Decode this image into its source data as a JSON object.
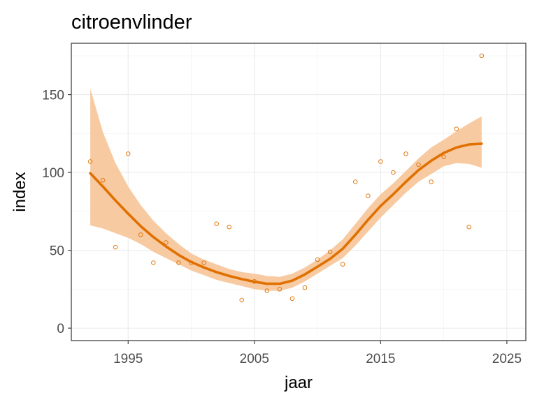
{
  "chart_data": {
    "type": "scatter",
    "title": "citroenvlinder",
    "xlabel": "jaar",
    "ylabel": "index",
    "xlim": [
      1990.5,
      2026.5
    ],
    "ylim": [
      -8,
      183
    ],
    "xticks": [
      1995,
      2005,
      2015,
      2025
    ],
    "yticks": [
      0,
      50,
      100,
      150
    ],
    "grid": true,
    "colors": {
      "points": "#e07000",
      "trend": "#e07000",
      "band": "#f6c498"
    },
    "points": [
      {
        "x": 1992,
        "y": 107
      },
      {
        "x": 1993,
        "y": 95
      },
      {
        "x": 1994,
        "y": 52
      },
      {
        "x": 1995,
        "y": 112
      },
      {
        "x": 1996,
        "y": 60
      },
      {
        "x": 1997,
        "y": 42
      },
      {
        "x": 1998,
        "y": 55
      },
      {
        "x": 1999,
        "y": 42
      },
      {
        "x": 2000,
        "y": 42
      },
      {
        "x": 2001,
        "y": 42
      },
      {
        "x": 2002,
        "y": 67
      },
      {
        "x": 2003,
        "y": 65
      },
      {
        "x": 2004,
        "y": 18
      },
      {
        "x": 2005,
        "y": 30
      },
      {
        "x": 2006,
        "y": 24
      },
      {
        "x": 2007,
        "y": 25
      },
      {
        "x": 2008,
        "y": 19
      },
      {
        "x": 2009,
        "y": 26
      },
      {
        "x": 2010,
        "y": 44
      },
      {
        "x": 2011,
        "y": 49
      },
      {
        "x": 2012,
        "y": 41
      },
      {
        "x": 2013,
        "y": 94
      },
      {
        "x": 2014,
        "y": 85
      },
      {
        "x": 2015,
        "y": 107
      },
      {
        "x": 2016,
        "y": 100
      },
      {
        "x": 2017,
        "y": 112
      },
      {
        "x": 2018,
        "y": 105
      },
      {
        "x": 2019,
        "y": 94
      },
      {
        "x": 2020,
        "y": 110
      },
      {
        "x": 2021,
        "y": 128
      },
      {
        "x": 2022,
        "y": 65
      },
      {
        "x": 2023,
        "y": 175
      }
    ],
    "trend": [
      {
        "x": 1992,
        "y": 99.5,
        "lo": 66,
        "hi": 154
      },
      {
        "x": 1993,
        "y": 91,
        "lo": 64,
        "hi": 126
      },
      {
        "x": 1994,
        "y": 82,
        "lo": 61,
        "hi": 106
      },
      {
        "x": 1995,
        "y": 73.5,
        "lo": 58,
        "hi": 91
      },
      {
        "x": 1996,
        "y": 65.5,
        "lo": 54,
        "hi": 79
      },
      {
        "x": 1997,
        "y": 58.5,
        "lo": 49,
        "hi": 69
      },
      {
        "x": 1998,
        "y": 52.5,
        "lo": 45,
        "hi": 61
      },
      {
        "x": 1999,
        "y": 47,
        "lo": 41,
        "hi": 54
      },
      {
        "x": 2000,
        "y": 42.5,
        "lo": 37,
        "hi": 48
      },
      {
        "x": 2001,
        "y": 39,
        "lo": 34,
        "hi": 44
      },
      {
        "x": 2002,
        "y": 36,
        "lo": 31,
        "hi": 41
      },
      {
        "x": 2003,
        "y": 33.5,
        "lo": 29,
        "hi": 38
      },
      {
        "x": 2004,
        "y": 31.5,
        "lo": 27,
        "hi": 36
      },
      {
        "x": 2005,
        "y": 29.8,
        "lo": 25,
        "hi": 35
      },
      {
        "x": 2006,
        "y": 28.5,
        "lo": 24,
        "hi": 33.5
      },
      {
        "x": 2007,
        "y": 28.5,
        "lo": 24,
        "hi": 33
      },
      {
        "x": 2008,
        "y": 30.5,
        "lo": 26,
        "hi": 35
      },
      {
        "x": 2009,
        "y": 34.5,
        "lo": 30,
        "hi": 39
      },
      {
        "x": 2010,
        "y": 39.5,
        "lo": 35,
        "hi": 44
      },
      {
        "x": 2011,
        "y": 44.5,
        "lo": 40,
        "hi": 50
      },
      {
        "x": 2012,
        "y": 51,
        "lo": 45,
        "hi": 57
      },
      {
        "x": 2013,
        "y": 60,
        "lo": 53,
        "hi": 67
      },
      {
        "x": 2014,
        "y": 69.5,
        "lo": 62,
        "hi": 77
      },
      {
        "x": 2015,
        "y": 78.5,
        "lo": 71,
        "hi": 86
      },
      {
        "x": 2016,
        "y": 86,
        "lo": 79,
        "hi": 93
      },
      {
        "x": 2017,
        "y": 94,
        "lo": 87,
        "hi": 101
      },
      {
        "x": 2018,
        "y": 101.5,
        "lo": 94,
        "hi": 109
      },
      {
        "x": 2019,
        "y": 107.5,
        "lo": 99,
        "hi": 116
      },
      {
        "x": 2020,
        "y": 112.5,
        "lo": 104,
        "hi": 121
      },
      {
        "x": 2021,
        "y": 116,
        "lo": 106,
        "hi": 126.5
      },
      {
        "x": 2022,
        "y": 118,
        "lo": 105.5,
        "hi": 131.5
      },
      {
        "x": 2023,
        "y": 118.5,
        "lo": 103,
        "hi": 136
      }
    ]
  }
}
